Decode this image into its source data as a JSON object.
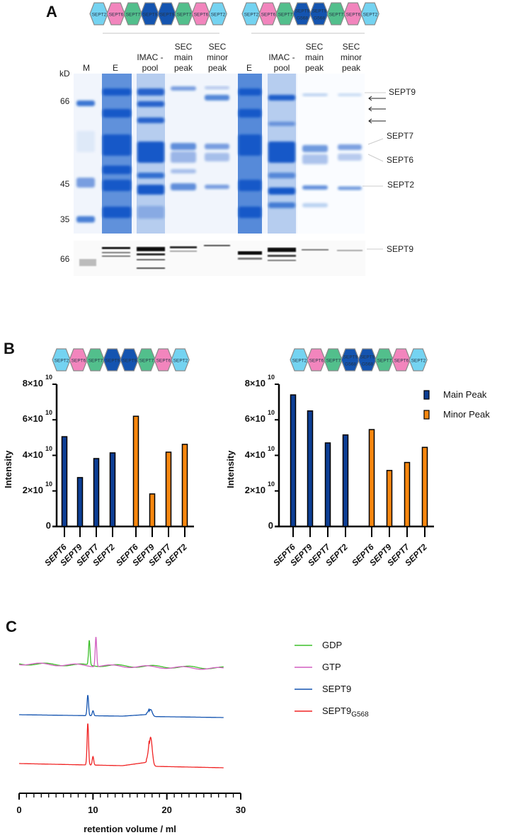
{
  "panel_a": {
    "label": "A",
    "complex_wt": [
      "SEPT2",
      "SEPT6",
      "SEPT7",
      "SEPT9",
      "SEPT9",
      "SEPT7",
      "SEPT6",
      "SEPT2"
    ],
    "complex_mut": [
      "SEPT2",
      "SEPT6",
      "SEPT7",
      "SEPT9 G568",
      "SEPT9 G568",
      "SEPT7",
      "SEPT6",
      "SEPT2"
    ],
    "kd_label": "kD",
    "lanes": [
      "M",
      "E",
      "IMAC -\npool",
      "SEC\nmain\npeak",
      "SEC\nminor\npeak",
      "E",
      "IMAC -\npool",
      "SEC\nmain\npeak",
      "SEC\nminor\npeak"
    ],
    "markers": [
      "66",
      "45",
      "35"
    ],
    "western_marker": "66",
    "band_labels": [
      "SEPT9",
      "SEPT7",
      "SEPT6",
      "SEPT2"
    ],
    "western_label": "SEPT9",
    "arrow_count": 3
  },
  "colors": {
    "SEPT2": "#74d3f1",
    "SEPT6": "#f285bd",
    "SEPT7": "#52bf8c",
    "SEPT9": "#1454b0",
    "main": "#0d3f95",
    "minor": "#f7870f",
    "GDP": "#3dbf2a",
    "GTP": "#d25fc0",
    "SEPT9G568": "#f02424"
  },
  "panel_b": {
    "label": "B"
  },
  "panel_c": {
    "label": "C"
  },
  "chart_data": [
    {
      "type": "bar",
      "title": "SEPT2-SEPT6-SEPT7-SEPT9 complex",
      "ylabel": "Intensity",
      "ylim": [
        0,
        80000000000.0
      ],
      "y_ticks": [
        "0",
        "2×10",
        "4×10",
        "6×10",
        "8×10"
      ],
      "y_tick_exponent": "10",
      "categories": [
        "SEPT6",
        "SEPT9",
        "SEPT7",
        "SEPT2",
        "SEPT6",
        "SEPT9",
        "SEPT7",
        "SEPT2"
      ],
      "series": [
        {
          "name": "Main Peak",
          "values": [
            50500000000.0,
            27500000000.0,
            38200000000.0,
            41400000000.0,
            null,
            null,
            null,
            null
          ]
        },
        {
          "name": "Minor Peak",
          "values": [
            null,
            null,
            null,
            null,
            62000000000.0,
            18300000000.0,
            41800000000.0,
            46200000000.0
          ]
        }
      ]
    },
    {
      "type": "bar",
      "title": "SEPT2-SEPT6-SEPT7-SEPT9 G568 complex",
      "ylabel": "Intensity",
      "ylim": [
        0,
        80000000000.0
      ],
      "y_ticks": [
        "0",
        "2×10",
        "4×10",
        "6×10",
        "8×10"
      ],
      "y_tick_exponent": "10",
      "categories": [
        "SEPT6",
        "SEPT9",
        "SEPT7",
        "SEPT2",
        "SEPT6",
        "SEPT9",
        "SEPT7",
        "SEPT2"
      ],
      "series": [
        {
          "name": "Main Peak",
          "values": [
            74000000000.0,
            65000000000.0,
            47000000000.0,
            51500000000.0,
            null,
            null,
            null,
            null
          ]
        },
        {
          "name": "Minor Peak",
          "values": [
            null,
            null,
            null,
            null,
            54500000000.0,
            31500000000.0,
            36000000000.0,
            44500000000.0
          ]
        }
      ],
      "legend": [
        "Main Peak",
        "Minor Peak"
      ],
      "legend_position": "right"
    },
    {
      "type": "line",
      "xlabel": "retention volume / ml",
      "xlim": [
        0,
        30
      ],
      "x_ticks": [
        "0",
        "10",
        "20",
        "30"
      ],
      "legend_position": "right",
      "series": [
        {
          "name": "GDP",
          "label_main": "GDP",
          "label_sub": "",
          "color_key": "GDP",
          "x_end": 27.7,
          "peaks": [
            {
              "x": 9.5,
              "height": 35
            }
          ]
        },
        {
          "name": "GTP",
          "label_main": "GTP",
          "label_sub": "",
          "color_key": "GTP",
          "x_end": 27.7,
          "peaks": [
            {
              "x": 10.4,
              "height": 42
            }
          ]
        },
        {
          "name": "SEPT9",
          "label_main": "SEPT9",
          "label_sub": "",
          "color_key": "SEPT9",
          "x_end": 27.7,
          "peaks": [
            {
              "x": 9.3,
              "height": 29
            },
            {
              "x": 10.0,
              "height": 7
            },
            {
              "x": 17.8,
              "height": 10
            }
          ]
        },
        {
          "name": "SEPT9G568",
          "label_main": "SEPT9",
          "label_sub": "G568",
          "color_key": "SEPT9G568",
          "x_end": 27.7,
          "peaks": [
            {
              "x": 9.3,
              "height": 59
            },
            {
              "x": 10.0,
              "height": 12
            },
            {
              "x": 17.8,
              "height": 41
            }
          ]
        }
      ]
    }
  ]
}
